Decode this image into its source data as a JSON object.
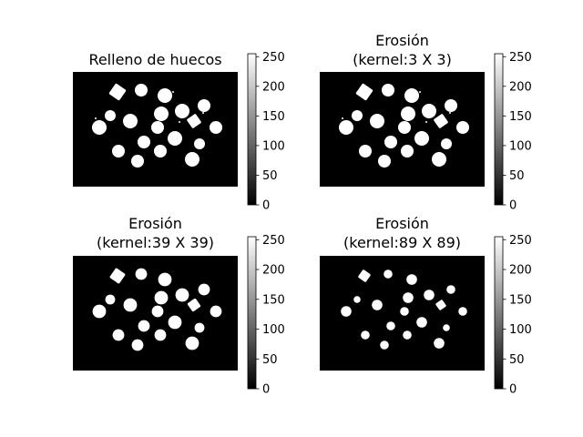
{
  "panels": [
    {
      "title_lines": [
        "Relleno de huecos"
      ],
      "kernel": null,
      "extra_dots": true
    },
    {
      "title_lines": [
        "Erosión",
        "(kernel:3 X 3)"
      ],
      "kernel": 3,
      "extra_dots": true
    },
    {
      "title_lines": [
        "Erosión",
        "(kernel:39 X 39)"
      ],
      "kernel": 39,
      "extra_dots": false
    },
    {
      "title_lines": [
        "Erosión",
        "(kernel:89 X 89)"
      ],
      "kernel": 89,
      "extra_dots": false
    }
  ],
  "colorbar": {
    "range": [
      0,
      255
    ],
    "tick_labels": [
      "0",
      "50",
      "100",
      "150",
      "200",
      "250"
    ],
    "tick_values": [
      0,
      50,
      100,
      150,
      200,
      250
    ],
    "colormap": "gray",
    "colors": {
      "low": "#000000",
      "high": "#ffffff"
    }
  },
  "colors": {
    "background": "#000000",
    "objects": "#ffffff",
    "frame": "#000000"
  }
}
